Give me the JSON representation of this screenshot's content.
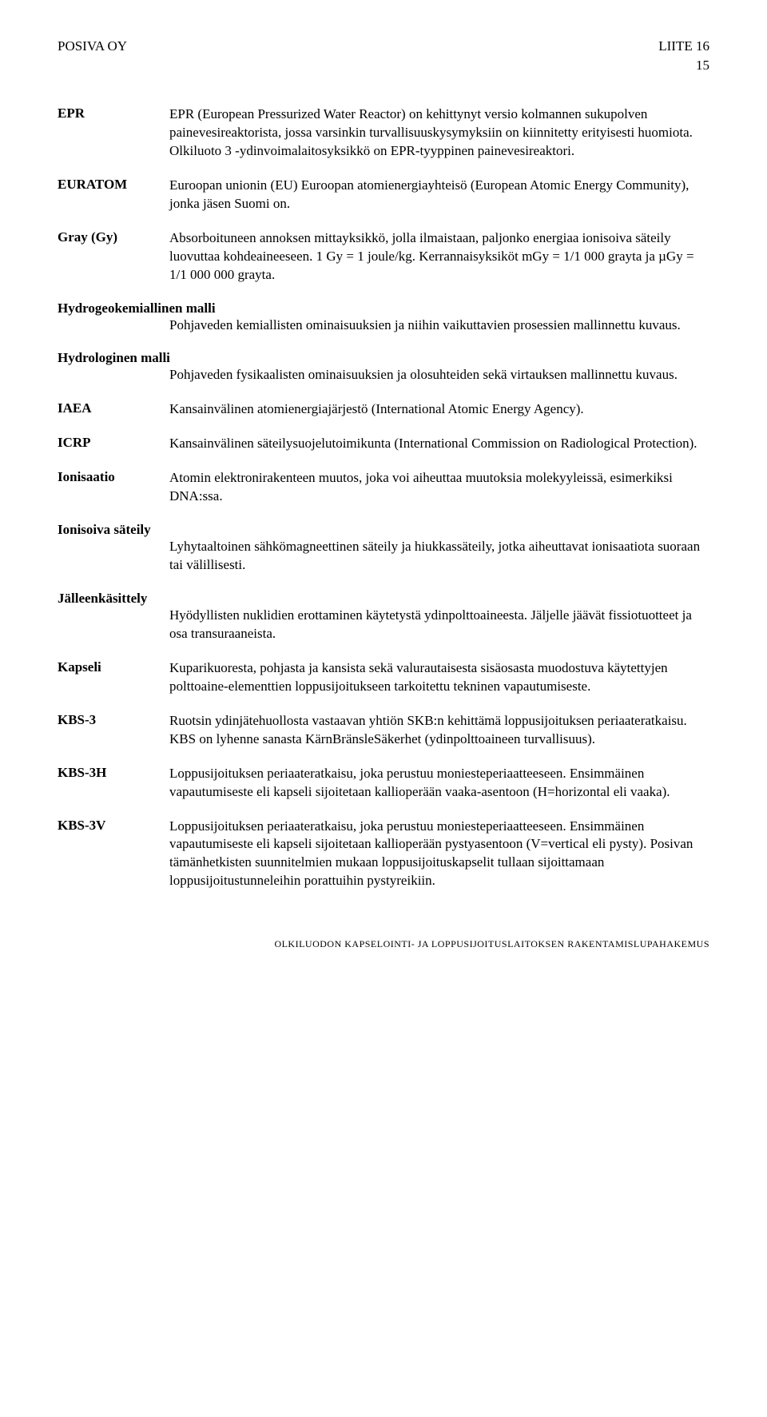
{
  "header": {
    "left": "POSIVA OY",
    "right": "LIITE 16",
    "page": "15"
  },
  "entries": [
    {
      "layout": "row",
      "term": "EPR",
      "defn": "EPR (European Pressurized Water Reactor) on kehittynyt versio kolmannen sukupolven painevesireaktorista, jossa varsinkin turvallisuus­kysymyksiin on kiinnitetty erityisesti huomiota. Olkiluoto 3 -ydinvoima­laitosyksikkö on EPR-tyyppinen painevesireaktori."
    },
    {
      "layout": "row",
      "term": "EURATOM",
      "defn": "Euroopan unionin (EU) Euroopan atomienergiayhteisö (European Atomic Energy Community), jonka jäsen Suomi on."
    },
    {
      "layout": "row",
      "term": "Gray (Gy)",
      "defn": "Absorboituneen annoksen mittayksikkö, jolla ilmaistaan, paljonko energiaa ionisoiva säteily luovuttaa kohdeaineeseen. 1 Gy = 1 joule/kg. Kerrannaisyksiköt mGy = 1/1 000 grayta ja µGy = 1/1 000 000 grayta."
    },
    {
      "layout": "stack",
      "term": "Hydrogeokemiallinen malli",
      "defn": "Pohjaveden kemiallisten ominaisuuksien ja niihin vaikuttavien prosessien mallinnettu kuvaus."
    },
    {
      "layout": "stack",
      "term": "Hydrologinen malli",
      "defn": "Pohjaveden fysikaalisten ominaisuuksien ja olosuhteiden sekä virtauksen mallinnettu kuvaus."
    },
    {
      "layout": "row",
      "term": "IAEA",
      "defn": "Kansainvälinen atomienergiajärjestö (International Atomic Energy Agency)."
    },
    {
      "layout": "row",
      "term": "ICRP",
      "defn": "Kansainvälinen säteilysuojelutoimikunta (International Commission on Radiological Protection)."
    },
    {
      "layout": "row",
      "term": "Ionisaatio",
      "defn": "Atomin elektronirakenteen muutos, joka voi aiheuttaa muutoksia molekyyleissä, esimerkiksi DNA:ssa."
    },
    {
      "layout": "stack",
      "term": "Ionisoiva säteily",
      "defn": "Lyhytaaltoinen sähkömagneettinen säteily ja hiukkassäteily, jotka aiheuttavat ionisaatiota suoraan tai välillisesti."
    },
    {
      "layout": "stack",
      "term": "Jälleenkäsittely",
      "defn": "Hyödyllisten nuklidien erottaminen käytetystä ydinpolttoaineesta. Jäljelle jäävät fissiotuotteet ja osa transuraaneista."
    },
    {
      "layout": "row",
      "term": "Kapseli",
      "defn": "Kuparikuoresta, pohjasta ja kansista sekä valurautaisesta sisäosasta muodostuva käytettyjen polttoaine-elementtien loppusijoitukseen tarkoitettu tekninen vapautumiseste."
    },
    {
      "layout": "row",
      "term": "KBS-3",
      "defn": "Ruotsin ydinjätehuollosta vastaavan yhtiön SKB:n kehittämä loppusijoituksen periaateratkaisu. KBS on lyhenne sanasta KärnBränsleSäkerhet (ydinpolttoaineen turvallisuus)."
    },
    {
      "layout": "row",
      "term": "KBS-3H",
      "defn": "Loppusijoituksen periaateratkaisu, joka perustuu moniesteperiaatteeseen. Ensimmäinen vapautumiseste eli kapseli sijoitetaan kallioperään vaaka-asentoon (H=horizontal eli vaaka)."
    },
    {
      "layout": "row",
      "term": "KBS-3V",
      "defn": "Loppusijoituksen periaateratkaisu, joka perustuu moniesteperiaatteeseen. Ensimmäinen vapautumiseste eli kapseli sijoitetaan kallioperään pystyasentoon (V=vertical eli pysty). Posivan tämänhetkisten suunnitelmien mukaan loppusijoituskapselit tullaan sijoittamaan loppusijoitustunneleihin porattuihin pystyreikiin."
    }
  ],
  "footer": "OLKILUODON KAPSELOINTI- JA LOPPUSIJOITUSLAITOKSEN RAKENTAMISLUPAHAKEMUS"
}
